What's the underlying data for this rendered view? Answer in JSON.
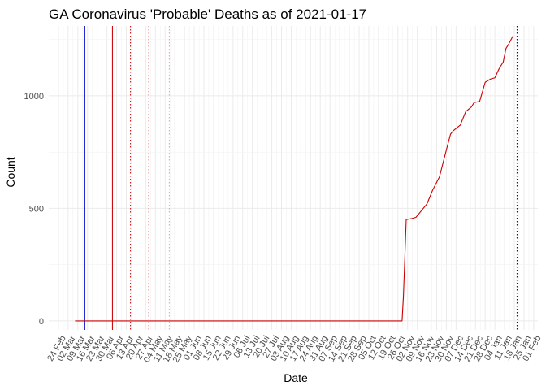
{
  "chart_data": {
    "type": "line",
    "title": "GA Coronavirus 'Probable' Deaths as of 2021-01-17",
    "xlabel": "Date",
    "ylabel": "Count",
    "ylim": [
      -40,
      1310
    ],
    "xlim": [
      "2020-02-17",
      "2021-02-04"
    ],
    "y_ticks": [
      0,
      500,
      1000
    ],
    "x_ticks": [
      "2020-02-24",
      "2020-03-02",
      "2020-03-09",
      "2020-03-16",
      "2020-03-23",
      "2020-03-30",
      "2020-04-06",
      "2020-04-13",
      "2020-04-20",
      "2020-04-27",
      "2020-05-04",
      "2020-05-11",
      "2020-05-18",
      "2020-05-25",
      "2020-06-01",
      "2020-06-08",
      "2020-06-15",
      "2020-06-22",
      "2020-06-29",
      "2020-07-06",
      "2020-07-13",
      "2020-07-20",
      "2020-07-27",
      "2020-08-03",
      "2020-08-10",
      "2020-08-17",
      "2020-08-24",
      "2020-08-31",
      "2020-09-07",
      "2020-09-14",
      "2020-09-21",
      "2020-09-28",
      "2020-10-05",
      "2020-10-12",
      "2020-10-19",
      "2020-10-26",
      "2020-11-02",
      "2020-11-09",
      "2020-11-16",
      "2020-11-23",
      "2020-11-30",
      "2020-12-07",
      "2020-12-14",
      "2020-12-21",
      "2020-12-28",
      "2021-01-04",
      "2021-01-11",
      "2021-01-18",
      "2021-01-25",
      "2021-02-01"
    ],
    "x_tick_labels": [
      "24 Feb",
      "02 Mar",
      "09 Mar",
      "16 Mar",
      "23 Mar",
      "30 Mar",
      "06 Apr",
      "13 Apr",
      "20 Apr",
      "27 Apr",
      "04 May",
      "11 May",
      "18 May",
      "25 May",
      "01 Jun",
      "08 Jun",
      "15 Jun",
      "22 Jun",
      "29 Jun",
      "06 Jul",
      "13 Jul",
      "20 Jul",
      "27 Jul",
      "03 Aug",
      "10 Aug",
      "17 Aug",
      "24 Aug",
      "31 Aug",
      "07 Sep",
      "14 Sep",
      "21 Sep",
      "28 Sep",
      "05 Oct",
      "12 Oct",
      "19 Oct",
      "26 Oct",
      "02 Nov",
      "09 Nov",
      "16 Nov",
      "23 Nov",
      "30 Nov",
      "07 Dec",
      "14 Dec",
      "21 Dec",
      "28 Dec",
      "04 Jan",
      "11 Jan",
      "18 Jan",
      "25 Jan",
      "01 Feb"
    ],
    "grid": true,
    "series": [
      {
        "color": "#cc0000",
        "x": [
          "2020-03-07",
          "2020-10-29",
          "2020-10-30",
          "2020-11-01",
          "2020-11-05",
          "2020-11-08",
          "2020-11-12",
          "2020-11-16",
          "2020-11-20",
          "2020-11-25",
          "2020-11-30",
          "2020-12-03",
          "2020-12-05",
          "2020-12-10",
          "2020-12-14",
          "2020-12-18",
          "2020-12-20",
          "2020-12-24",
          "2020-12-28",
          "2021-01-01",
          "2021-01-04",
          "2021-01-07",
          "2021-01-10",
          "2021-01-12",
          "2021-01-14",
          "2021-01-17"
        ],
        "y": [
          0,
          0,
          110,
          450,
          455,
          460,
          490,
          520,
          580,
          640,
          760,
          830,
          845,
          870,
          930,
          950,
          970,
          975,
          1060,
          1075,
          1080,
          1120,
          1150,
          1210,
          1230,
          1265
        ]
      }
    ],
    "reference_lines": [
      {
        "x": "2020-03-14",
        "color": "#0000cc",
        "style": "solid"
      },
      {
        "x": "2020-04-03",
        "color": "#cc0000",
        "style": "solid"
      },
      {
        "x": "2020-04-16",
        "color": "#cc0000",
        "style": "dotted"
      },
      {
        "x": "2020-04-29",
        "color": "#e8a0a0",
        "style": "dotted"
      },
      {
        "x": "2020-05-14",
        "color": "#e8a0a0",
        "style": "dotted"
      },
      {
        "x": "2021-01-20",
        "color": "#000066",
        "style": "dotted"
      }
    ]
  }
}
